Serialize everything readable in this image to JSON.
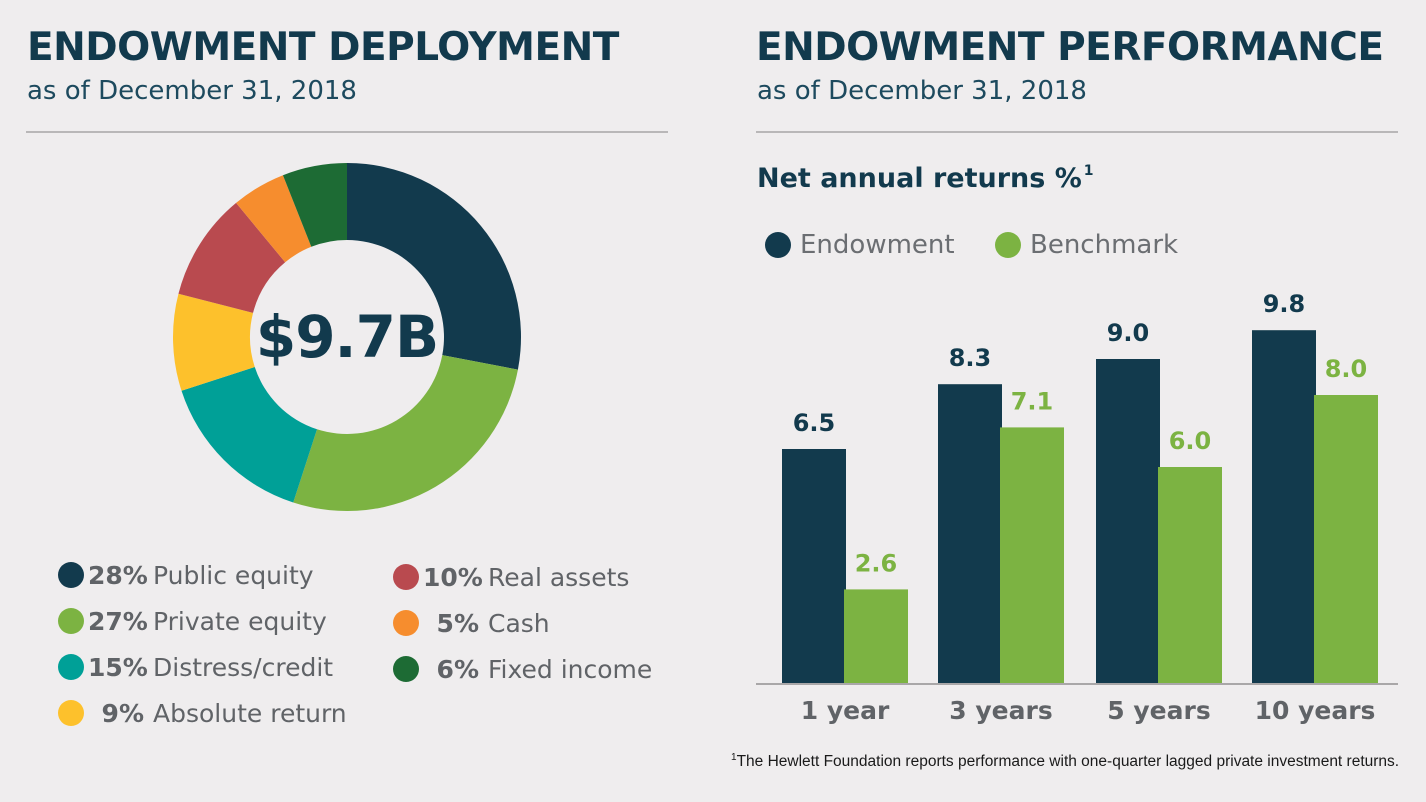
{
  "deployment": {
    "title": "ENDOWMENT DEPLOYMENT",
    "subtitle": "as of December 31, 2018",
    "total": "$9.7B"
  },
  "performance": {
    "title": "ENDOWMENT PERFORMANCE",
    "subtitle": "as of December 31, 2018",
    "chart_title": "Net annual returns %",
    "chart_title_note": "1",
    "footnote_marker": "1",
    "footnote": "The Hewlett Foundation reports performance with one-quarter lagged private investment returns."
  },
  "colors": {
    "dark_navy": "#123a4d",
    "green": "#7cb342",
    "teal": "#00a097",
    "yellow": "#fdc12c",
    "red": "#b94a4f",
    "orange": "#f68d2e",
    "dark_green": "#1d6b34"
  },
  "chart_data": [
    {
      "type": "pie",
      "title": "ENDOWMENT DEPLOYMENT",
      "center_label": "$9.7B",
      "legend_placement": "bottom",
      "slices": [
        {
          "label": "Public equity",
          "pct_text": "28%",
          "value": 28,
          "color": "#123a4d"
        },
        {
          "label": "Private equity",
          "pct_text": "27%",
          "value": 27,
          "color": "#7cb342"
        },
        {
          "label": "Distress/credit",
          "pct_text": "15%",
          "value": 15,
          "color": "#00a097"
        },
        {
          "label": "Absolute return",
          "pct_text": "9%",
          "value": 9,
          "color": "#fdc12c"
        },
        {
          "label": "Real assets",
          "pct_text": "10%",
          "value": 10,
          "color": "#b94a4f"
        },
        {
          "label": "Cash",
          "pct_text": "5%",
          "value": 5,
          "color": "#f68d2e"
        },
        {
          "label": "Fixed income",
          "pct_text": "6%",
          "value": 6,
          "color": "#1d6b34"
        }
      ]
    },
    {
      "type": "bar",
      "title": "Net annual returns %",
      "categories": [
        "1 year",
        "3 years",
        "5 years",
        "10 years"
      ],
      "series": [
        {
          "name": "Endowment",
          "values": [
            6.5,
            8.3,
            9.0,
            9.8
          ],
          "labels": [
            "6.5",
            "8.3",
            "9.0",
            "9.8"
          ],
          "color": "#123a4d"
        },
        {
          "name": "Benchmark",
          "values": [
            2.6,
            7.1,
            6.0,
            8.0
          ],
          "labels": [
            "2.6",
            "7.1",
            "6.0",
            "8.0"
          ],
          "color": "#7cb342"
        }
      ],
      "ylim": [
        0,
        11
      ],
      "grid": false,
      "legend_placement": "top-left"
    }
  ]
}
